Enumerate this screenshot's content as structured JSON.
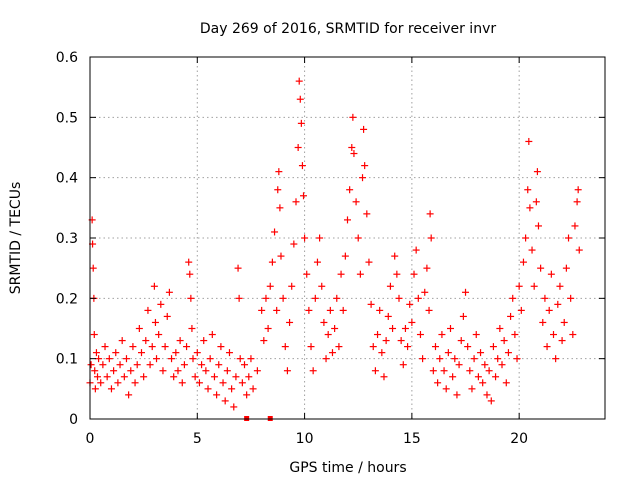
{
  "chart_data": {
    "type": "scatter",
    "title": "Day 269 of 2016, SRMTID for receiver invr",
    "xlabel": "GPS time / hours",
    "ylabel": "SRMTID / TECUs",
    "xlim": [
      0,
      24
    ],
    "ylim": [
      0,
      0.6
    ],
    "x_ticks": [
      "0",
      "5",
      "10",
      "15",
      "20"
    ],
    "y_ticks": [
      "0",
      "0.1",
      "0.2",
      "0.3",
      "0.4",
      "0.5",
      "0.6"
    ],
    "grid": true,
    "marker": "plus",
    "color": "#ff0000",
    "series": [
      {
        "name": "SRMTID",
        "points": [
          [
            0.0,
            0.06
          ],
          [
            0.05,
            0.09
          ],
          [
            0.1,
            0.33
          ],
          [
            0.12,
            0.29
          ],
          [
            0.15,
            0.25
          ],
          [
            0.18,
            0.2
          ],
          [
            0.2,
            0.14
          ],
          [
            0.22,
            0.08
          ],
          [
            0.25,
            0.05
          ],
          [
            0.3,
            0.11
          ],
          [
            0.35,
            0.07
          ],
          [
            0.4,
            0.1
          ],
          [
            0.5,
            0.06
          ],
          [
            0.6,
            0.09
          ],
          [
            0.7,
            0.12
          ],
          [
            0.8,
            0.07
          ],
          [
            0.9,
            0.1
          ],
          [
            1.0,
            0.05
          ],
          [
            1.1,
            0.08
          ],
          [
            1.2,
            0.11
          ],
          [
            1.3,
            0.06
          ],
          [
            1.4,
            0.09
          ],
          [
            1.5,
            0.13
          ],
          [
            1.6,
            0.07
          ],
          [
            1.7,
            0.1
          ],
          [
            1.8,
            0.04
          ],
          [
            1.9,
            0.08
          ],
          [
            2.0,
            0.12
          ],
          [
            2.1,
            0.06
          ],
          [
            2.2,
            0.09
          ],
          [
            2.3,
            0.15
          ],
          [
            2.4,
            0.11
          ],
          [
            2.5,
            0.07
          ],
          [
            2.6,
            0.13
          ],
          [
            2.7,
            0.18
          ],
          [
            2.8,
            0.09
          ],
          [
            2.9,
            0.12
          ],
          [
            3.0,
            0.22
          ],
          [
            3.05,
            0.16
          ],
          [
            3.1,
            0.1
          ],
          [
            3.2,
            0.14
          ],
          [
            3.3,
            0.19
          ],
          [
            3.4,
            0.08
          ],
          [
            3.5,
            0.12
          ],
          [
            3.6,
            0.17
          ],
          [
            3.7,
            0.21
          ],
          [
            3.8,
            0.1
          ],
          [
            3.9,
            0.07
          ],
          [
            4.0,
            0.11
          ],
          [
            4.1,
            0.08
          ],
          [
            4.2,
            0.13
          ],
          [
            4.3,
            0.06
          ],
          [
            4.4,
            0.09
          ],
          [
            4.5,
            0.12
          ],
          [
            4.6,
            0.26
          ],
          [
            4.65,
            0.24
          ],
          [
            4.7,
            0.2
          ],
          [
            4.75,
            0.15
          ],
          [
            4.8,
            0.1
          ],
          [
            4.9,
            0.07
          ],
          [
            5.0,
            0.11
          ],
          [
            5.1,
            0.06
          ],
          [
            5.2,
            0.09
          ],
          [
            5.3,
            0.13
          ],
          [
            5.4,
            0.08
          ],
          [
            5.5,
            0.05
          ],
          [
            5.6,
            0.1
          ],
          [
            5.7,
            0.14
          ],
          [
            5.8,
            0.07
          ],
          [
            5.9,
            0.04
          ],
          [
            6.0,
            0.09
          ],
          [
            6.1,
            0.12
          ],
          [
            6.2,
            0.06
          ],
          [
            6.3,
            0.03
          ],
          [
            6.4,
            0.08
          ],
          [
            6.5,
            0.11
          ],
          [
            6.6,
            0.05
          ],
          [
            6.7,
            0.02
          ],
          [
            6.8,
            0.07
          ],
          [
            6.9,
            0.25
          ],
          [
            6.95,
            0.2
          ],
          [
            7.0,
            0.1
          ],
          [
            7.1,
            0.06
          ],
          [
            7.2,
            0.09
          ],
          [
            7.3,
            0.04
          ],
          [
            7.4,
            0.07
          ],
          [
            7.5,
            0.1
          ],
          [
            7.6,
            0.05
          ],
          [
            7.8,
            0.08
          ],
          [
            8.0,
            0.18
          ],
          [
            8.1,
            0.13
          ],
          [
            8.2,
            0.2
          ],
          [
            8.3,
            0.15
          ],
          [
            8.4,
            0.22
          ],
          [
            8.5,
            0.26
          ],
          [
            8.6,
            0.31
          ],
          [
            8.7,
            0.18
          ],
          [
            8.75,
            0.38
          ],
          [
            8.8,
            0.41
          ],
          [
            8.85,
            0.35
          ],
          [
            8.9,
            0.27
          ],
          [
            9.0,
            0.2
          ],
          [
            9.1,
            0.12
          ],
          [
            9.2,
            0.08
          ],
          [
            9.3,
            0.16
          ],
          [
            9.4,
            0.22
          ],
          [
            9.5,
            0.29
          ],
          [
            9.6,
            0.36
          ],
          [
            9.7,
            0.45
          ],
          [
            9.75,
            0.56
          ],
          [
            9.8,
            0.53
          ],
          [
            9.85,
            0.49
          ],
          [
            9.9,
            0.42
          ],
          [
            9.95,
            0.37
          ],
          [
            10.0,
            0.3
          ],
          [
            10.1,
            0.24
          ],
          [
            10.2,
            0.18
          ],
          [
            10.3,
            0.12
          ],
          [
            10.4,
            0.08
          ],
          [
            10.5,
            0.2
          ],
          [
            10.6,
            0.26
          ],
          [
            10.7,
            0.3
          ],
          [
            10.8,
            0.22
          ],
          [
            10.9,
            0.16
          ],
          [
            11.0,
            0.1
          ],
          [
            11.1,
            0.14
          ],
          [
            11.2,
            0.18
          ],
          [
            11.3,
            0.11
          ],
          [
            11.4,
            0.15
          ],
          [
            11.5,
            0.2
          ],
          [
            11.6,
            0.12
          ],
          [
            11.7,
            0.24
          ],
          [
            11.8,
            0.18
          ],
          [
            11.9,
            0.27
          ],
          [
            12.0,
            0.33
          ],
          [
            12.1,
            0.38
          ],
          [
            12.2,
            0.45
          ],
          [
            12.25,
            0.5
          ],
          [
            12.3,
            0.44
          ],
          [
            12.4,
            0.36
          ],
          [
            12.5,
            0.3
          ],
          [
            12.6,
            0.24
          ],
          [
            12.7,
            0.4
          ],
          [
            12.75,
            0.48
          ],
          [
            12.8,
            0.42
          ],
          [
            12.9,
            0.34
          ],
          [
            13.0,
            0.26
          ],
          [
            13.1,
            0.19
          ],
          [
            13.2,
            0.12
          ],
          [
            13.3,
            0.08
          ],
          [
            13.4,
            0.14
          ],
          [
            13.5,
            0.18
          ],
          [
            13.6,
            0.11
          ],
          [
            13.7,
            0.07
          ],
          [
            13.8,
            0.13
          ],
          [
            13.9,
            0.17
          ],
          [
            14.0,
            0.22
          ],
          [
            14.1,
            0.15
          ],
          [
            14.2,
            0.27
          ],
          [
            14.3,
            0.24
          ],
          [
            14.4,
            0.2
          ],
          [
            14.5,
            0.13
          ],
          [
            14.6,
            0.09
          ],
          [
            14.7,
            0.15
          ],
          [
            14.8,
            0.12
          ],
          [
            14.9,
            0.19
          ],
          [
            15.0,
            0.16
          ],
          [
            15.1,
            0.24
          ],
          [
            15.2,
            0.28
          ],
          [
            15.3,
            0.2
          ],
          [
            15.4,
            0.14
          ],
          [
            15.5,
            0.1
          ],
          [
            15.6,
            0.21
          ],
          [
            15.7,
            0.25
          ],
          [
            15.8,
            0.18
          ],
          [
            15.85,
            0.34
          ],
          [
            15.9,
            0.3
          ],
          [
            16.0,
            0.08
          ],
          [
            16.1,
            0.12
          ],
          [
            16.2,
            0.06
          ],
          [
            16.3,
            0.1
          ],
          [
            16.4,
            0.14
          ],
          [
            16.5,
            0.08
          ],
          [
            16.6,
            0.05
          ],
          [
            16.7,
            0.11
          ],
          [
            16.8,
            0.15
          ],
          [
            16.9,
            0.07
          ],
          [
            17.0,
            0.1
          ],
          [
            17.1,
            0.04
          ],
          [
            17.2,
            0.09
          ],
          [
            17.3,
            0.13
          ],
          [
            17.4,
            0.17
          ],
          [
            17.5,
            0.21
          ],
          [
            17.6,
            0.12
          ],
          [
            17.7,
            0.08
          ],
          [
            17.8,
            0.05
          ],
          [
            17.9,
            0.1
          ],
          [
            18.0,
            0.14
          ],
          [
            18.1,
            0.07
          ],
          [
            18.2,
            0.11
          ],
          [
            18.3,
            0.06
          ],
          [
            18.4,
            0.09
          ],
          [
            18.5,
            0.04
          ],
          [
            18.6,
            0.08
          ],
          [
            18.7,
            0.03
          ],
          [
            18.8,
            0.12
          ],
          [
            18.9,
            0.07
          ],
          [
            19.0,
            0.1
          ],
          [
            19.1,
            0.15
          ],
          [
            19.2,
            0.09
          ],
          [
            19.3,
            0.13
          ],
          [
            19.4,
            0.06
          ],
          [
            19.5,
            0.11
          ],
          [
            19.6,
            0.17
          ],
          [
            19.7,
            0.2
          ],
          [
            19.8,
            0.14
          ],
          [
            19.9,
            0.1
          ],
          [
            20.0,
            0.22
          ],
          [
            20.1,
            0.18
          ],
          [
            20.2,
            0.26
          ],
          [
            20.3,
            0.3
          ],
          [
            20.4,
            0.38
          ],
          [
            20.45,
            0.46
          ],
          [
            20.5,
            0.35
          ],
          [
            20.6,
            0.28
          ],
          [
            20.7,
            0.22
          ],
          [
            20.8,
            0.36
          ],
          [
            20.85,
            0.41
          ],
          [
            20.9,
            0.32
          ],
          [
            21.0,
            0.25
          ],
          [
            21.1,
            0.16
          ],
          [
            21.2,
            0.2
          ],
          [
            21.3,
            0.12
          ],
          [
            21.4,
            0.18
          ],
          [
            21.5,
            0.24
          ],
          [
            21.6,
            0.14
          ],
          [
            21.7,
            0.1
          ],
          [
            21.8,
            0.19
          ],
          [
            21.9,
            0.22
          ],
          [
            22.0,
            0.13
          ],
          [
            22.1,
            0.16
          ],
          [
            22.2,
            0.25
          ],
          [
            22.3,
            0.3
          ],
          [
            22.4,
            0.2
          ],
          [
            22.5,
            0.14
          ],
          [
            22.6,
            0.32
          ],
          [
            22.7,
            0.36
          ],
          [
            22.75,
            0.38
          ],
          [
            22.8,
            0.28
          ]
        ]
      }
    ],
    "gap_markers_x": [
      7.3,
      8.4
    ]
  }
}
